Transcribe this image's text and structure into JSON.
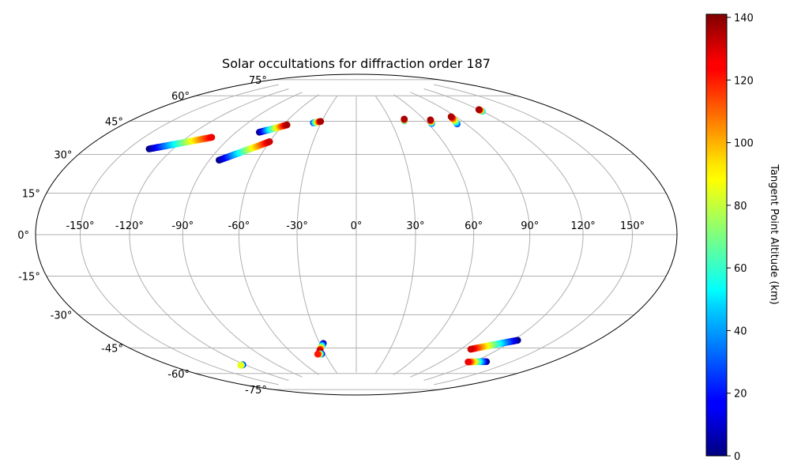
{
  "chart_data": {
    "type": "scatter",
    "projection": "hammer",
    "title": "Solar occultations for diffraction order 187",
    "grid": true,
    "lon_ticks": [
      -150,
      -120,
      -90,
      -60,
      -30,
      0,
      30,
      60,
      90,
      120,
      150
    ],
    "lat_ticks": [
      -75,
      -60,
      -45,
      -30,
      -15,
      0,
      15,
      30,
      45,
      60,
      75
    ],
    "lon_tick_labels": [
      "-150°",
      "-120°",
      "-90°",
      "-60°",
      "-30°",
      "0°",
      "30°",
      "60°",
      "90°",
      "120°",
      "150°"
    ],
    "lat_tick_labels": [
      "-75°",
      "-60°",
      "-45°",
      "-30°",
      "-15°",
      "0°",
      "15°",
      "30°",
      "45°",
      "60°",
      "75°"
    ],
    "colorbar": {
      "label": "Tangent Point Altitude (km)",
      "range": [
        0,
        141
      ],
      "ticks": [
        0,
        20,
        40,
        60,
        80,
        100,
        120,
        140
      ],
      "tick_labels": [
        "0",
        "20",
        "40",
        "60",
        "80",
        "100",
        "120",
        "140"
      ],
      "colormap": "jet"
    },
    "tracks": [
      {
        "start": {
          "lon": -136,
          "lat": 37.5,
          "alt": 0
        },
        "end": {
          "lon": -103,
          "lat": 46.5,
          "alt": 125
        }
      },
      {
        "start": {
          "lon": -84,
          "lat": 36,
          "alt": 0
        },
        "end": {
          "lon": -60,
          "lat": 47,
          "alt": 130
        }
      },
      {
        "start": {
          "lon": -73,
          "lat": 51.5,
          "alt": 0
        },
        "end": {
          "lon": -57,
          "lat": 56.5,
          "alt": 135
        }
      },
      {
        "start": {
          "lon": -36.5,
          "lat": 58.5,
          "alt": 25
        },
        "end": {
          "lon": -31,
          "lat": 59.5,
          "alt": 135
        }
      },
      {
        "start": {
          "lon": 42,
          "lat": 59.5,
          "alt": 40
        },
        "end": {
          "lon": 43,
          "lat": 60.5,
          "alt": 135
        }
      },
      {
        "start": {
          "lon": 63,
          "lat": 57,
          "alt": 25
        },
        "end": {
          "lon": 65,
          "lat": 59,
          "alt": 135
        }
      },
      {
        "start": {
          "lon": 83,
          "lat": 55.5,
          "alt": 25
        },
        "end": {
          "lon": 86,
          "lat": 59.5,
          "alt": 135
        }
      },
      {
        "start": {
          "lon": 120,
          "lat": 59.5,
          "alt": 40
        },
        "end": {
          "lon": 120,
          "lat": 60.5,
          "alt": 135
        }
      },
      {
        "start": {
          "lon": -122,
          "lat": -63.5,
          "alt": 0
        },
        "end": {
          "lon": -125,
          "lat": -63.5,
          "alt": 85
        }
      },
      {
        "start": {
          "lon": -27,
          "lat": -57,
          "alt": 0
        },
        "end": {
          "lon": -33,
          "lat": -61,
          "alt": 130
        }
      },
      {
        "start": {
          "lon": -33,
          "lat": -63,
          "alt": 10
        },
        "end": {
          "lon": -37,
          "lat": -63,
          "alt": 120
        }
      },
      {
        "start": {
          "lon": 123,
          "lat": -49,
          "alt": 0
        },
        "end": {
          "lon": 98,
          "lat": -56.5,
          "alt": 130
        }
      },
      {
        "start": {
          "lon": 130,
          "lat": -60.5,
          "alt": 0
        },
        "end": {
          "lon": 115,
          "lat": -62.5,
          "alt": 125
        }
      }
    ]
  }
}
